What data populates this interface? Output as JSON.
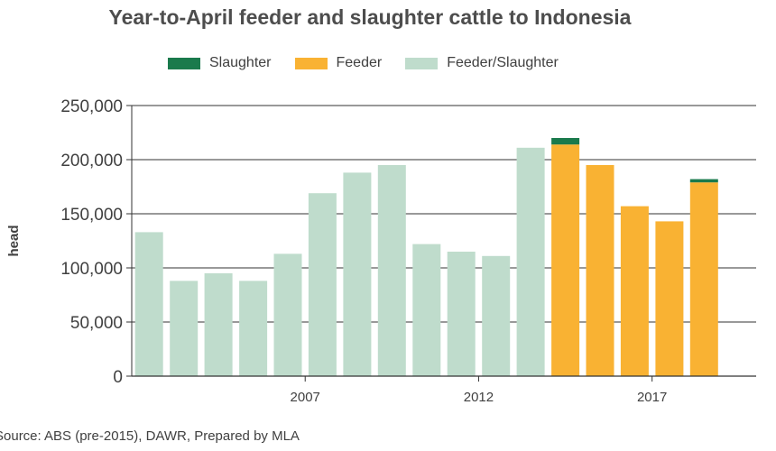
{
  "chart_data": {
    "type": "bar",
    "stacked": true,
    "title": "Year-to-April feeder and slaughter cattle to Indonesia",
    "ylabel": "head",
    "xlabel": "",
    "ylim": [
      0,
      250000
    ],
    "yticks": [
      0,
      50000,
      100000,
      150000,
      200000,
      250000
    ],
    "ytick_labels": [
      "0",
      "50,000",
      "100,000",
      "150,000",
      "200,000",
      "250,000"
    ],
    "xtick_labels": [
      {
        "year": 2007,
        "label": "2007"
      },
      {
        "year": 2012,
        "label": "2012"
      },
      {
        "year": 2017,
        "label": "2017"
      }
    ],
    "grid": "horizontal",
    "legend_position": "top",
    "legend": [
      {
        "key": "slaughter",
        "label": "Slaughter",
        "color": "#1a7a4c"
      },
      {
        "key": "feeder",
        "label": "Feeder",
        "color": "#f9b233"
      },
      {
        "key": "feeder_slaughter",
        "label": "Feeder/Slaughter",
        "color": "#bfdccc"
      }
    ],
    "categories": [
      2002,
      2003,
      2004,
      2005,
      2006,
      2007,
      2008,
      2009,
      2010,
      2011,
      2012,
      2013,
      2014,
      2015,
      2016,
      2017,
      2018,
      2019
    ],
    "series": [
      {
        "key": "feeder_slaughter",
        "name": "Feeder/Slaughter",
        "color": "#bfdccc",
        "values": [
          133000,
          88000,
          95000,
          88000,
          113000,
          169000,
          188000,
          195000,
          122000,
          115000,
          111000,
          211000,
          0,
          0,
          0,
          0,
          0,
          0
        ]
      },
      {
        "key": "feeder",
        "name": "Feeder",
        "color": "#f9b233",
        "values": [
          0,
          0,
          0,
          0,
          0,
          0,
          0,
          0,
          0,
          0,
          0,
          0,
          214000,
          195000,
          157000,
          143000,
          179000,
          0
        ]
      },
      {
        "key": "slaughter",
        "name": "Slaughter",
        "color": "#1a7a4c",
        "values": [
          0,
          0,
          0,
          0,
          0,
          0,
          0,
          0,
          0,
          0,
          0,
          0,
          6000,
          0,
          0,
          0,
          3000,
          0
        ]
      }
    ]
  },
  "footer": {
    "source": "Source: ABS (pre-2015), DAWR, Prepared by MLA"
  }
}
